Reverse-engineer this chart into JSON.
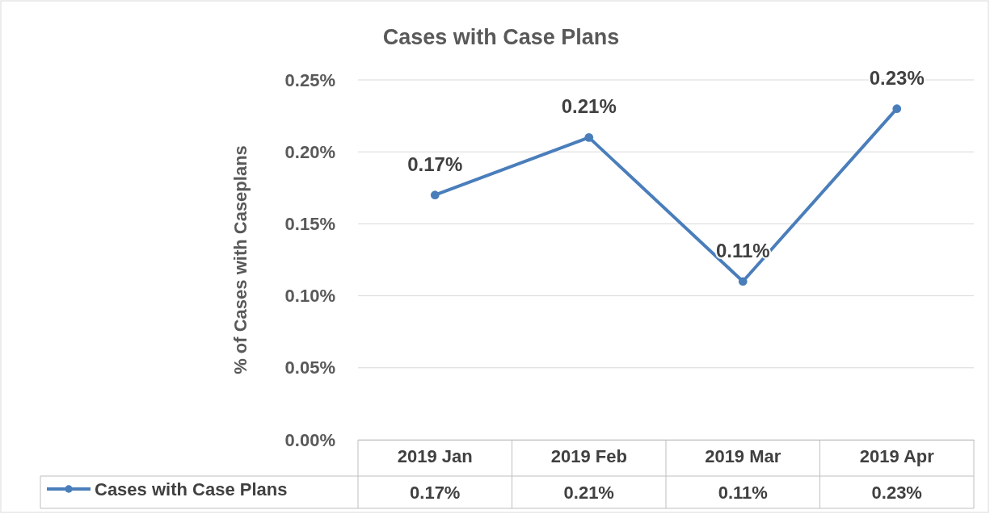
{
  "chart_data": {
    "type": "line",
    "title": "Cases with Case Plans",
    "ylabel": "% of Cases with Caseplans",
    "categories": [
      "2019 Jan",
      "2019 Feb",
      "2019 Mar",
      "2019 Apr"
    ],
    "series": [
      {
        "name": "Cases with Case Plans",
        "color": "#4a7ebb",
        "values": [
          0.17,
          0.21,
          0.11,
          0.23
        ],
        "value_labels": [
          "0.17%",
          "0.21%",
          "0.11%",
          "0.23%"
        ]
      }
    ],
    "ylim": [
      0,
      0.25
    ],
    "yticks": [
      {
        "value": 0,
        "label": "0.00%"
      },
      {
        "value": 0.05,
        "label": "0.05%"
      },
      {
        "value": 0.1,
        "label": "0.10%"
      },
      {
        "value": 0.15,
        "label": "0.15%"
      },
      {
        "value": 0.2,
        "label": "0.20%"
      },
      {
        "value": 0.25,
        "label": "0.25%"
      }
    ],
    "grid": "y",
    "legend": "bottom",
    "marker": "circle",
    "line_style": "solid"
  }
}
